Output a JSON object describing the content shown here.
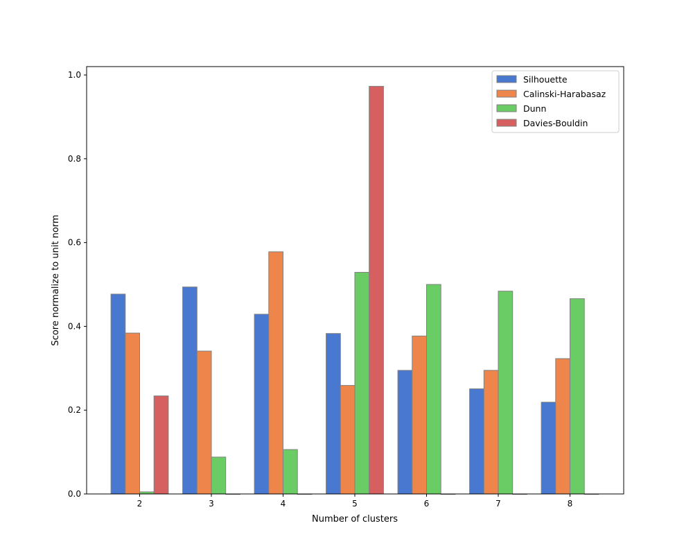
{
  "chart_data": {
    "type": "bar",
    "title": "",
    "xlabel": "Number of clusters",
    "ylabel": "Score normalize to unit norm",
    "categories": [
      "2",
      "3",
      "4",
      "5",
      "6",
      "7",
      "8"
    ],
    "ylim": [
      0,
      1.02
    ],
    "yticks": [
      0.0,
      0.2,
      0.4,
      0.6,
      0.8,
      1.0
    ],
    "ytick_labels": [
      "0.0",
      "0.2",
      "0.4",
      "0.6",
      "0.8",
      "1.0"
    ],
    "grid": false,
    "legend_position": "top-right",
    "bar_edge_color": "#808080",
    "series": [
      {
        "name": "Silhouette",
        "color": "#4878d0",
        "values": [
          0.477,
          0.494,
          0.429,
          0.383,
          0.295,
          0.251,
          0.219
        ]
      },
      {
        "name": "Calinski-Harabasaz",
        "color": "#ee854a",
        "values": [
          0.384,
          0.341,
          0.578,
          0.259,
          0.377,
          0.295,
          0.323
        ]
      },
      {
        "name": "Dunn",
        "color": "#6acc64",
        "values": [
          0.005,
          0.088,
          0.106,
          0.529,
          0.5,
          0.484,
          0.466
        ]
      },
      {
        "name": "Davies-Bouldin",
        "color": "#d65f5f",
        "values": [
          0.234,
          0.0,
          0.0,
          0.973,
          0.0,
          0.0,
          0.0
        ]
      }
    ]
  }
}
